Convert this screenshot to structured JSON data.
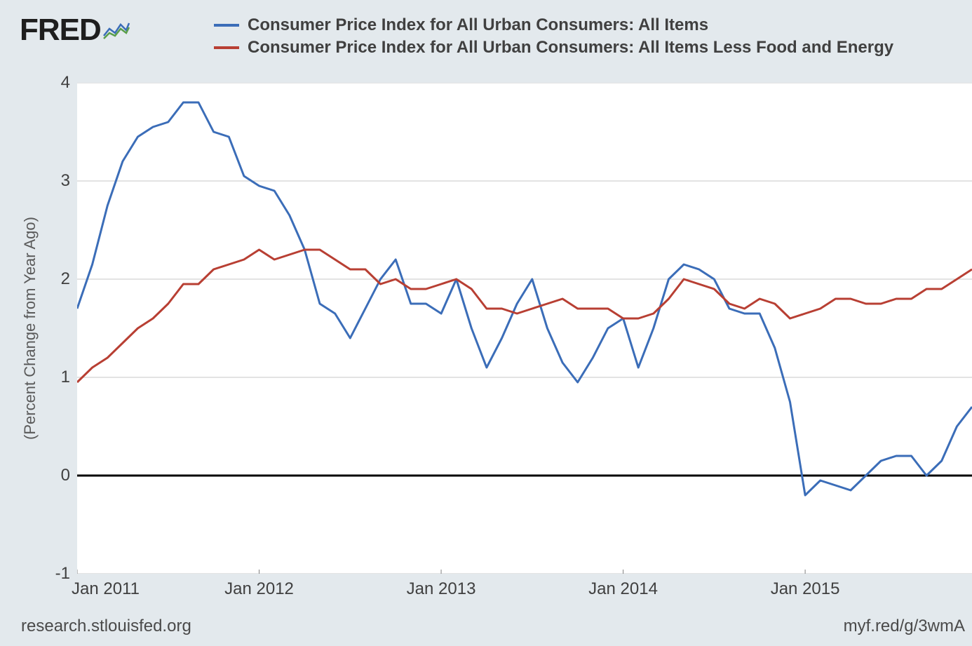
{
  "logo": {
    "text": "FRED"
  },
  "legend": {
    "items": [
      {
        "label": "Consumer Price Index for All Urban Consumers: All Items",
        "color": "#3b6db8"
      },
      {
        "label": "Consumer Price Index for All Urban Consumers: All Items Less Food and Energy",
        "color": "#b83f33"
      }
    ],
    "label_fontsize": 24
  },
  "chart": {
    "type": "line",
    "background_color": "#ffffff",
    "page_background_color": "#e3e9ed",
    "grid_color": "#c7c7c7",
    "zero_line_color": "#000000",
    "zero_line_width": 3,
    "line_width": 3,
    "ylabel": "(Percent Change from Year Ago)",
    "ylabel_fontsize": 22,
    "tick_fontsize": 24,
    "xlim": [
      0,
      59
    ],
    "ylim": [
      -1,
      4
    ],
    "yticks": [
      -1,
      0,
      1,
      2,
      3,
      4
    ],
    "xticks": [
      {
        "index": 0,
        "label": "Jan 2011"
      },
      {
        "index": 12,
        "label": "Jan 2012"
      },
      {
        "index": 24,
        "label": "Jan 2013"
      },
      {
        "index": 36,
        "label": "Jan 2014"
      },
      {
        "index": 48,
        "label": "Jan 2015"
      }
    ],
    "series": [
      {
        "name": "cpi_all_items",
        "color": "#3b6db8",
        "values": [
          1.7,
          2.15,
          2.75,
          3.2,
          3.45,
          3.55,
          3.6,
          3.8,
          3.8,
          3.5,
          3.45,
          3.05,
          2.95,
          2.9,
          2.65,
          2.3,
          1.75,
          1.65,
          1.4,
          1.7,
          2.0,
          2.2,
          1.75,
          1.75,
          1.65,
          2.0,
          1.5,
          1.1,
          1.4,
          1.75,
          2.0,
          1.5,
          1.15,
          0.95,
          1.2,
          1.5,
          1.6,
          1.1,
          1.5,
          2.0,
          2.15,
          2.1,
          2.0,
          1.7,
          1.65,
          1.65,
          1.3,
          0.75,
          -0.2,
          -0.05,
          -0.1,
          -0.15,
          0.0,
          0.15,
          0.2,
          0.2,
          0.0,
          0.15,
          0.5,
          0.7
        ]
      },
      {
        "name": "cpi_core",
        "color": "#b83f33",
        "values": [
          0.95,
          1.1,
          1.2,
          1.35,
          1.5,
          1.6,
          1.75,
          1.95,
          1.95,
          2.1,
          2.15,
          2.2,
          2.3,
          2.2,
          2.25,
          2.3,
          2.3,
          2.2,
          2.1,
          2.1,
          1.95,
          2.0,
          1.9,
          1.9,
          1.95,
          2.0,
          1.9,
          1.7,
          1.7,
          1.65,
          1.7,
          1.75,
          1.8,
          1.7,
          1.7,
          1.7,
          1.6,
          1.6,
          1.65,
          1.8,
          2.0,
          1.95,
          1.9,
          1.75,
          1.7,
          1.8,
          1.75,
          1.6,
          1.65,
          1.7,
          1.8,
          1.8,
          1.75,
          1.75,
          1.8,
          1.8,
          1.9,
          1.9,
          2.0,
          2.1
        ]
      }
    ]
  },
  "footer": {
    "left": "research.stlouisfed.org",
    "right": "myf.red/g/3wmA"
  }
}
